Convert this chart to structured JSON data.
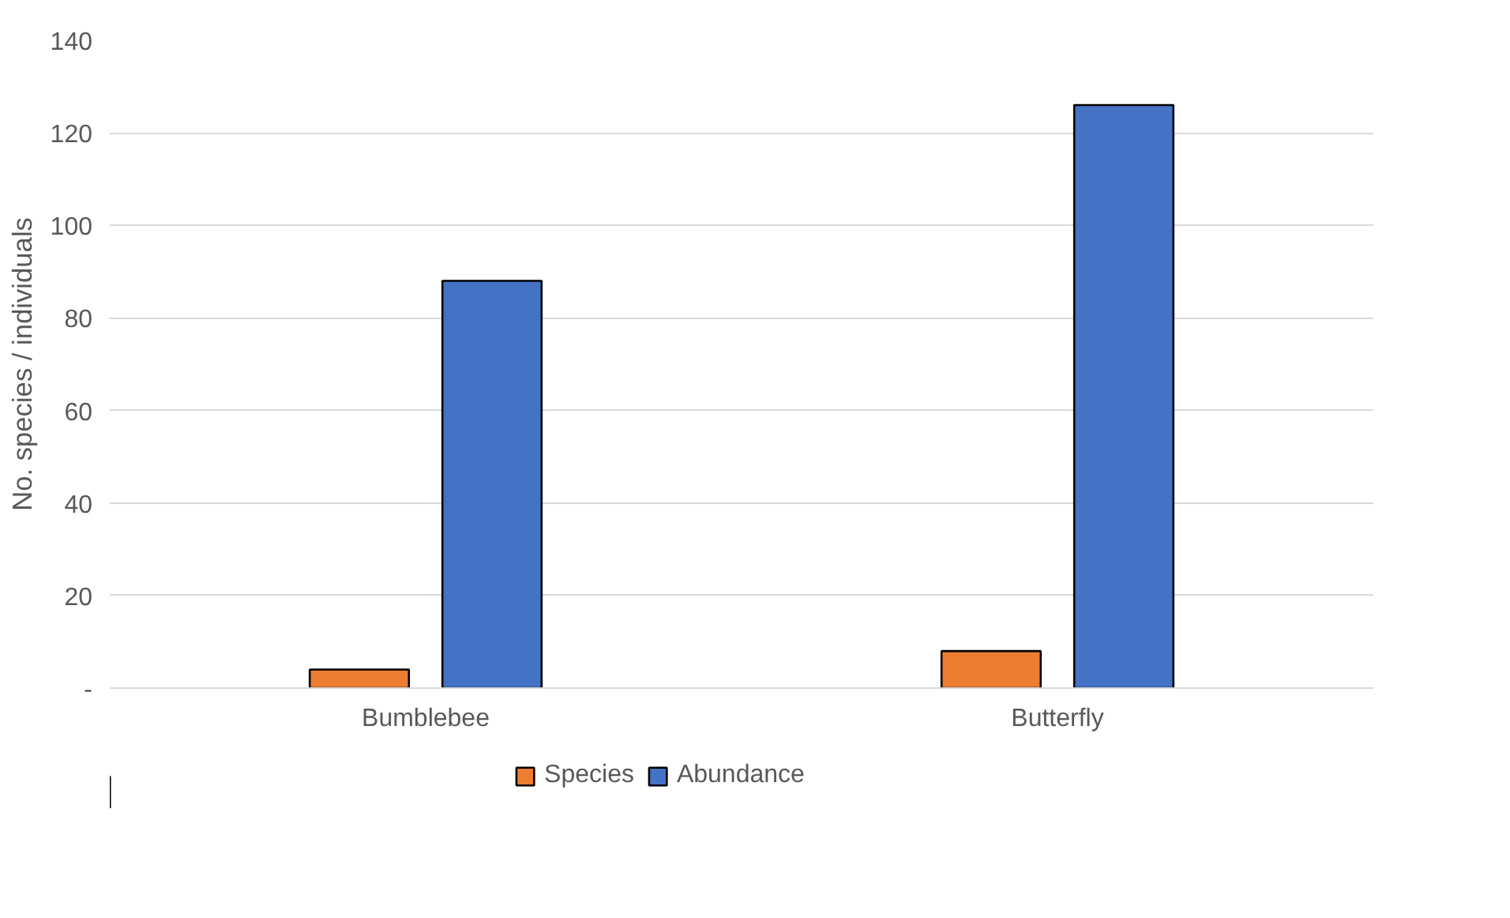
{
  "chart_data": {
    "type": "bar",
    "ylabel": "No. species / individuals",
    "categories": [
      "Bumblebee",
      "Butterfly"
    ],
    "series": [
      {
        "name": "Species",
        "color": "#ed7d31",
        "values": [
          4,
          8
        ]
      },
      {
        "name": "Abundance",
        "color": "#4472c4",
        "values": [
          88,
          126
        ]
      }
    ],
    "ylim": [
      0,
      140
    ],
    "yticks": [
      {
        "value": 0,
        "label": "-"
      },
      20,
      40,
      60,
      80,
      100,
      120,
      140
    ],
    "grid": "y",
    "legend": "bottom"
  }
}
